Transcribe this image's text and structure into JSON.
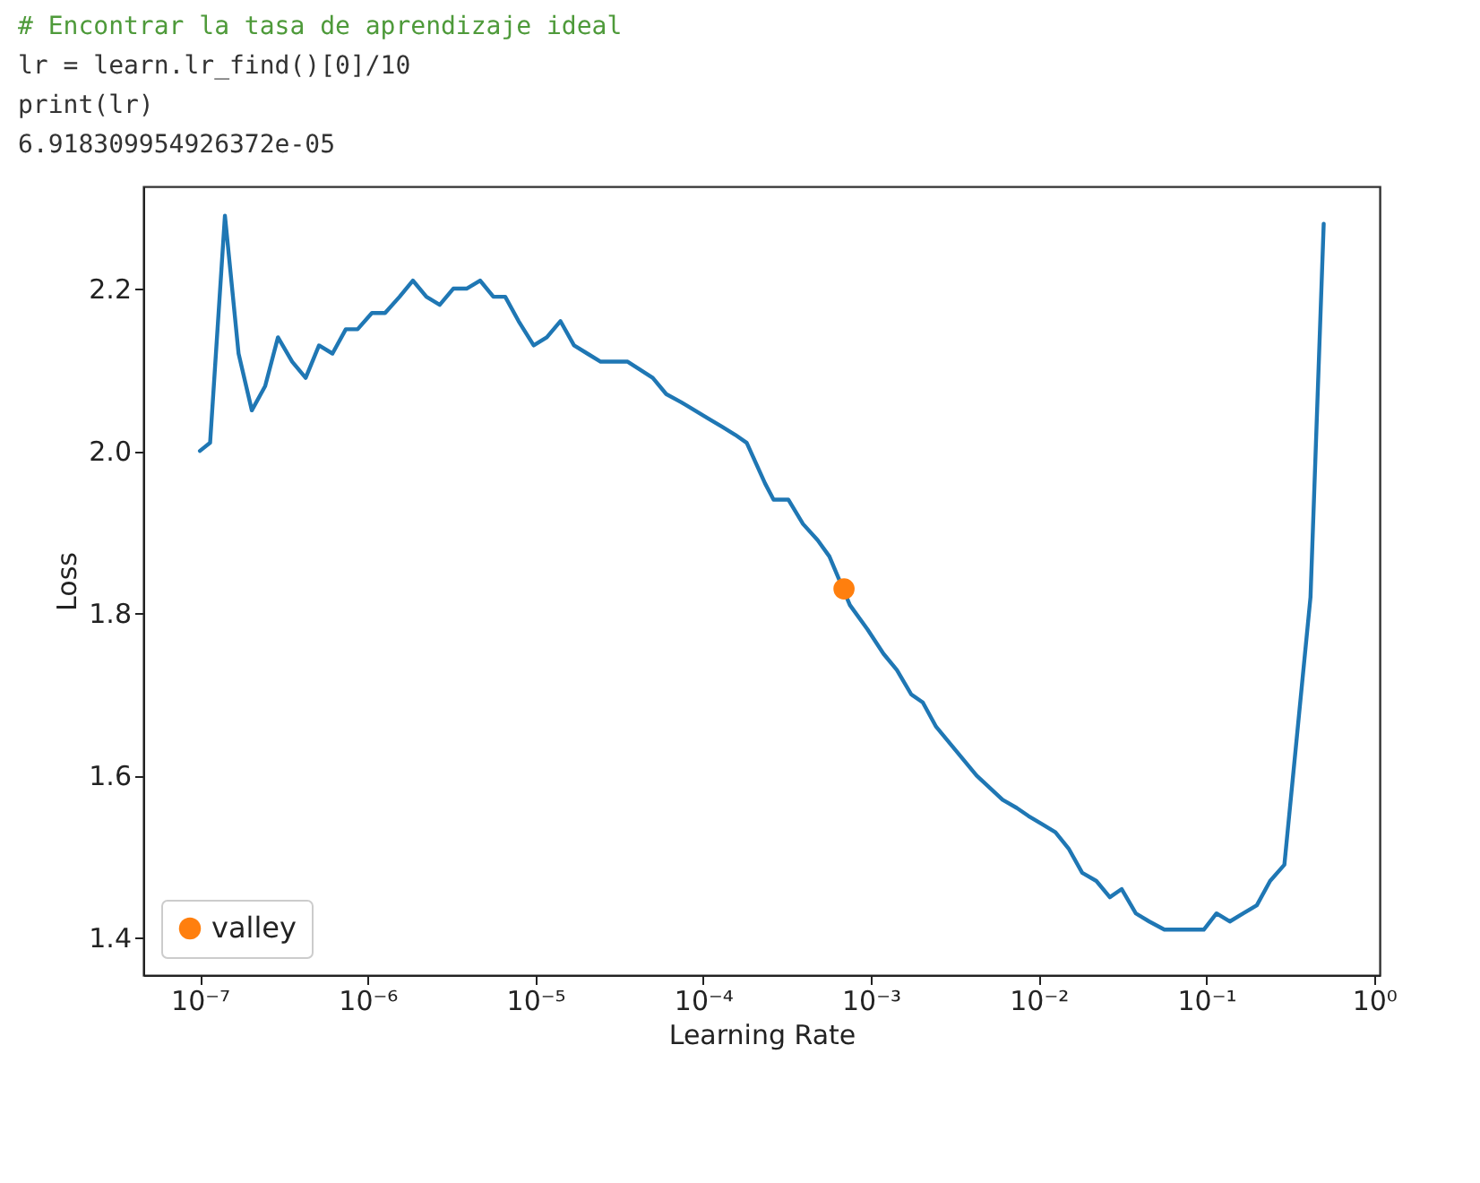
{
  "chart_data": {
    "type": "line",
    "xlabel": "Learning Rate",
    "ylabel": "Loss",
    "log": "x",
    "grid": false,
    "legend": "bottom left",
    "line_style": "solid",
    "annotations": [
      "# Encontrar la tasa de aprendizaje ideal",
      "lr = learn.lr_find()[0]/10",
      "print(lr)",
      "6.918309954926372e-05"
    ],
    "xlim": [
      4.6e-08,
      1.08
    ],
    "xticks": [
      {
        "value": 1e-07,
        "label": "10⁻⁷"
      },
      {
        "value": 1e-06,
        "label": "10⁻⁶"
      },
      {
        "value": 1e-05,
        "label": "10⁻⁵"
      },
      {
        "value": 0.0001,
        "label": "10⁻⁴"
      },
      {
        "value": 0.001,
        "label": "10⁻³"
      },
      {
        "value": 0.01,
        "label": "10⁻²"
      },
      {
        "value": 0.1,
        "label": "10⁻¹"
      },
      {
        "value": 1,
        "label": "10⁰"
      }
    ],
    "ylim": [
      1.354,
      2.326
    ],
    "yticks": [
      1.4,
      1.6,
      1.8,
      {
        "value": 2,
        "label": "2.0"
      },
      2.2
    ],
    "series": [
      {
        "type": "line",
        "color": "#1f77b4",
        "marker": "none",
        "x": [
          1e-07,
          1.15e-07,
          1.41e-07,
          1.7e-07,
          2.04e-07,
          2.45e-07,
          2.92e-07,
          3.55e-07,
          4.27e-07,
          5.13e-07,
          6.17e-07,
          7.41e-07,
          8.71e-07,
          1.06e-06,
          1.27e-06,
          1.55e-06,
          1.86e-06,
          2.24e-06,
          2.69e-06,
          3.24e-06,
          3.89e-06,
          4.68e-06,
          5.62e-06,
          6.61e-06,
          7.94e-06,
          9.77e-06,
          1.17e-05,
          1.41e-05,
          1.7e-05,
          2.04e-05,
          2.45e-05,
          2.95e-05,
          3.55e-05,
          4.22e-05,
          5.01e-05,
          6.03e-05,
          7.41e-05,
          8.91e-05,
          0.000107,
          0.000129,
          0.000155,
          0.000182,
          0.000234,
          0.000263,
          0.000322,
          0.000394,
          0.000482,
          0.000566,
          0.00075,
          0.000955,
          0.00119,
          0.00143,
          0.00174,
          0.00204,
          0.00245,
          0.00295,
          0.00427,
          0.0061,
          0.00741,
          0.00871,
          0.0105,
          0.0126,
          0.0151,
          0.0182,
          0.0221,
          0.0266,
          0.0313,
          0.038,
          0.0457,
          0.0562,
          0.0676,
          0.0794,
          0.0966,
          0.115,
          0.138,
          0.166,
          0.2,
          0.24,
          0.292,
          0.418,
          0.501
        ],
        "values": [
          2.0,
          2.01,
          2.29,
          2.12,
          2.05,
          2.08,
          2.14,
          2.11,
          2.09,
          2.13,
          2.12,
          2.15,
          2.15,
          2.17,
          2.17,
          2.19,
          2.21,
          2.19,
          2.18,
          2.2,
          2.2,
          2.21,
          2.19,
          2.19,
          2.16,
          2.13,
          2.14,
          2.16,
          2.13,
          2.12,
          2.11,
          2.11,
          2.11,
          2.1,
          2.09,
          2.07,
          2.06,
          2.05,
          2.04,
          2.03,
          2.02,
          2.01,
          1.96,
          1.94,
          1.94,
          1.91,
          1.89,
          1.87,
          1.81,
          1.78,
          1.75,
          1.73,
          1.7,
          1.69,
          1.66,
          1.64,
          1.6,
          1.57,
          1.56,
          1.55,
          1.54,
          1.53,
          1.51,
          1.48,
          1.47,
          1.45,
          1.46,
          1.43,
          1.42,
          1.41,
          1.41,
          1.41,
          1.41,
          1.43,
          1.42,
          1.43,
          1.44,
          1.47,
          1.49,
          1.82,
          2.28
        ]
      },
      {
        "type": "scatter",
        "name": "valley",
        "color": "#ff7f0e",
        "marker": "circle",
        "x": [
          0.0006918
        ],
        "values": [
          1.83
        ]
      }
    ]
  }
}
